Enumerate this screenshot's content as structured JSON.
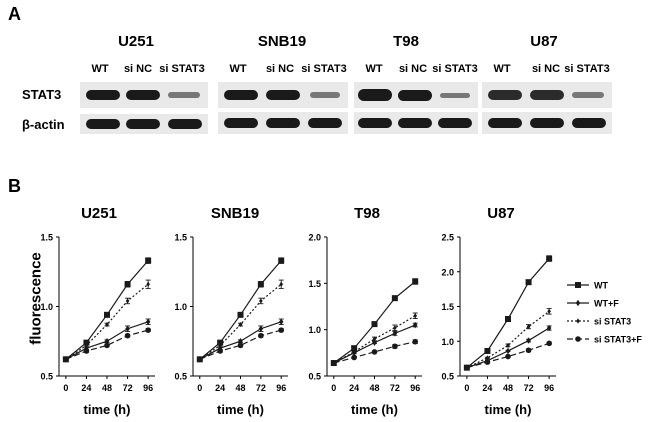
{
  "panel_a": {
    "label": "A",
    "row_labels": [
      "STAT3",
      "β-actin"
    ],
    "cell_lines": [
      {
        "name": "U251",
        "lanes": [
          "WT",
          "si NC",
          "si STAT3"
        ]
      },
      {
        "name": "SNB19",
        "lanes": [
          "WT",
          "si NC",
          "si STAT3"
        ]
      },
      {
        "name": "T98",
        "lanes": [
          "WT",
          "si NC",
          "si STAT3"
        ]
      },
      {
        "name": "U87",
        "lanes": [
          "WT",
          "si NC",
          "si STAT3"
        ]
      }
    ]
  },
  "panel_b": {
    "label": "B",
    "ylabel": "fluorescence",
    "xlabel": "time (h)"
  },
  "chart_data": [
    {
      "type": "line",
      "title": "U251",
      "xlabel": "time (h)",
      "ylabel": "fluorescence",
      "x": [
        0,
        24,
        48,
        72,
        96
      ],
      "xticks": [
        0,
        24,
        48,
        72,
        96
      ],
      "ylim": [
        0.5,
        1.5
      ],
      "yticks": [
        "0.5",
        "1.0",
        "1.5"
      ],
      "series": [
        {
          "name": "WT",
          "values": [
            0.62,
            0.74,
            0.94,
            1.16,
            1.33
          ],
          "errors": [
            0.01,
            0.01,
            0.01,
            0.02,
            0.02
          ]
        },
        {
          "name": "WT+F",
          "values": [
            0.62,
            0.7,
            0.75,
            0.84,
            0.89
          ],
          "errors": [
            0.01,
            0.01,
            0.01,
            0.02,
            0.02
          ]
        },
        {
          "name": "si STAT3",
          "values": [
            0.62,
            0.72,
            0.87,
            1.04,
            1.16
          ],
          "errors": [
            0.01,
            0.01,
            0.01,
            0.02,
            0.03
          ]
        },
        {
          "name": "si STAT3+F",
          "values": [
            0.62,
            0.68,
            0.72,
            0.79,
            0.83
          ],
          "errors": [
            0.01,
            0.01,
            0.01,
            0.01,
            0.01
          ]
        }
      ]
    },
    {
      "type": "line",
      "title": "SNB19",
      "xlabel": "time (h)",
      "x": [
        0,
        24,
        48,
        72,
        96
      ],
      "xticks": [
        0,
        24,
        48,
        72,
        96
      ],
      "ylim": [
        0.5,
        1.5
      ],
      "yticks": [
        "0.5",
        "1.0",
        "1.5"
      ],
      "series": [
        {
          "name": "WT",
          "values": [
            0.62,
            0.74,
            0.94,
            1.16,
            1.33
          ],
          "errors": [
            0.01,
            0.01,
            0.01,
            0.02,
            0.02
          ]
        },
        {
          "name": "WT+F",
          "values": [
            0.62,
            0.7,
            0.75,
            0.84,
            0.89
          ],
          "errors": [
            0.01,
            0.01,
            0.01,
            0.02,
            0.02
          ]
        },
        {
          "name": "si STAT3",
          "values": [
            0.62,
            0.72,
            0.87,
            1.04,
            1.16
          ],
          "errors": [
            0.01,
            0.01,
            0.01,
            0.02,
            0.03
          ]
        },
        {
          "name": "si STAT3+F",
          "values": [
            0.62,
            0.68,
            0.72,
            0.79,
            0.83
          ],
          "errors": [
            0.01,
            0.01,
            0.01,
            0.01,
            0.01
          ]
        }
      ]
    },
    {
      "type": "line",
      "title": "T98",
      "xlabel": "time (h)",
      "x": [
        0,
        24,
        48,
        72,
        96
      ],
      "xticks": [
        0,
        24,
        48,
        72,
        96
      ],
      "ylim": [
        0.5,
        2.0
      ],
      "yticks": [
        "0.5",
        "1.0",
        "1.5",
        "2.0"
      ],
      "series": [
        {
          "name": "WT",
          "values": [
            0.64,
            0.8,
            1.06,
            1.34,
            1.52
          ],
          "errors": [
            0.01,
            0.01,
            0.01,
            0.02,
            0.03
          ]
        },
        {
          "name": "WT+F",
          "values": [
            0.64,
            0.75,
            0.86,
            0.96,
            1.05
          ],
          "errors": [
            0.01,
            0.01,
            0.01,
            0.02,
            0.02
          ]
        },
        {
          "name": "si STAT3",
          "values": [
            0.64,
            0.76,
            0.9,
            1.02,
            1.15
          ],
          "errors": [
            0.01,
            0.01,
            0.02,
            0.03,
            0.03
          ]
        },
        {
          "name": "si STAT3+F",
          "values": [
            0.64,
            0.7,
            0.76,
            0.82,
            0.87
          ],
          "errors": [
            0.01,
            0.01,
            0.01,
            0.02,
            0.02
          ]
        }
      ]
    },
    {
      "type": "line",
      "title": "U87",
      "xlabel": "time (h)",
      "x": [
        0,
        24,
        48,
        72,
        96
      ],
      "xticks": [
        0,
        24,
        48,
        72,
        96
      ],
      "ylim": [
        0.5,
        2.5
      ],
      "yticks": [
        "0.5",
        "1.0",
        "1.5",
        "2.0",
        "2.5"
      ],
      "series": [
        {
          "name": "WT",
          "values": [
            0.62,
            0.86,
            1.32,
            1.85,
            2.19
          ],
          "errors": [
            0.01,
            0.01,
            0.02,
            0.02,
            0.04
          ]
        },
        {
          "name": "WT+F",
          "values": [
            0.62,
            0.72,
            0.86,
            1.01,
            1.19
          ],
          "errors": [
            0.01,
            0.01,
            0.01,
            0.02,
            0.03
          ]
        },
        {
          "name": "si STAT3",
          "values": [
            0.62,
            0.76,
            0.94,
            1.21,
            1.43
          ],
          "errors": [
            0.01,
            0.01,
            0.02,
            0.03,
            0.04
          ]
        },
        {
          "name": "si STAT3+F",
          "values": [
            0.62,
            0.7,
            0.78,
            0.87,
            0.97
          ],
          "errors": [
            0.01,
            0.01,
            0.01,
            0.02,
            0.02
          ]
        }
      ]
    }
  ],
  "legend": {
    "placement": "right",
    "entries": [
      {
        "name": "WT",
        "marker": "square",
        "dash": "solid"
      },
      {
        "name": "WT+F",
        "marker": "diamond",
        "dash": "solid"
      },
      {
        "name": "si STAT3",
        "marker": "diamond-small",
        "dash": "dotted"
      },
      {
        "name": "si STAT3+F",
        "marker": "circle",
        "dash": "dashed"
      }
    ]
  },
  "colors": {
    "line": "#1a1a1a",
    "blot_background": "#e9e9e9",
    "band": "#1a1a1a"
  }
}
